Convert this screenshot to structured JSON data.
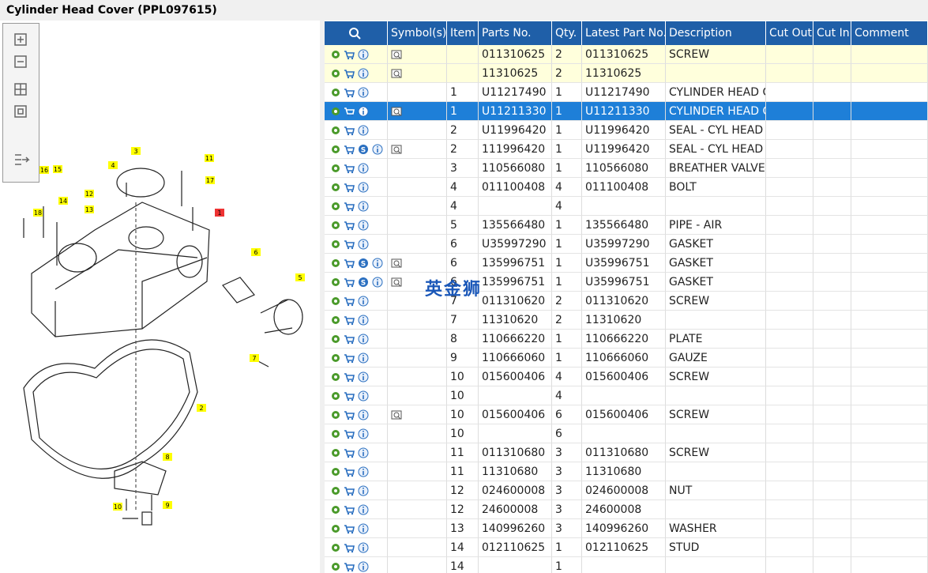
{
  "header": {
    "title": "Cylinder Head Cover (PPL097615)"
  },
  "watermark": "英金狮",
  "diagram": {
    "callouts": [
      "1",
      "2",
      "3",
      "4",
      "5",
      "6",
      "7",
      "8",
      "9",
      "10",
      "11",
      "12",
      "13",
      "14",
      "15",
      "16",
      "17",
      "18"
    ]
  },
  "table": {
    "headers": [
      "Symbol(s)",
      "Item",
      "Parts No.",
      "Qty.",
      "Latest Part No.",
      "Description",
      "Cut Out",
      "Cut In",
      "Comment"
    ],
    "rows": [
      {
        "state": "yellow",
        "sym": true,
        "part": "011310625",
        "qty": 2,
        "latest": "011310625",
        "desc": "SCREW"
      },
      {
        "state": "yellow",
        "sym": true,
        "part": "11310625",
        "qty": 2,
        "latest": "11310625"
      },
      {
        "item": 1,
        "part": "U11217490",
        "qty": 1,
        "latest": "U11217490",
        "desc": "CYLINDER HEAD C"
      },
      {
        "state": "selected",
        "sym": true,
        "item": 1,
        "part": "U11211330",
        "qty": 1,
        "latest": "U11211330",
        "desc": "CYLINDER HEAD C"
      },
      {
        "item": 2,
        "part": "U11996420",
        "qty": 1,
        "latest": "U11996420",
        "desc": "SEAL - CYL HEAD ("
      },
      {
        "s": true,
        "sym": true,
        "item": 2,
        "part": "111996420",
        "qty": 1,
        "latest": "U11996420",
        "desc": "SEAL - CYL HEAD ("
      },
      {
        "item": 3,
        "part": "110566080",
        "qty": 1,
        "latest": "110566080",
        "desc": "BREATHER VALVE"
      },
      {
        "item": 4,
        "part": "011100408",
        "qty": 4,
        "latest": "011100408",
        "desc": "BOLT"
      },
      {
        "item": 4,
        "qty": 4
      },
      {
        "item": 5,
        "part": "135566480",
        "qty": 1,
        "latest": "135566480",
        "desc": "PIPE - AIR"
      },
      {
        "item": 6,
        "part": "U35997290",
        "qty": 1,
        "latest": "U35997290",
        "desc": "GASKET"
      },
      {
        "s": true,
        "sym": true,
        "item": 6,
        "part": "135996751",
        "qty": 1,
        "latest": "U35996751",
        "desc": "GASKET"
      },
      {
        "s": true,
        "sym": true,
        "item": 6,
        "part": "135996751",
        "qty": 1,
        "latest": "U35996751",
        "desc": "GASKET"
      },
      {
        "item": 7,
        "part": "011310620",
        "qty": 2,
        "latest": "011310620",
        "desc": "SCREW"
      },
      {
        "item": 7,
        "part": "11310620",
        "qty": 2,
        "latest": "11310620"
      },
      {
        "item": 8,
        "part": "110666220",
        "qty": 1,
        "latest": "110666220",
        "desc": "PLATE"
      },
      {
        "item": 9,
        "part": "110666060",
        "qty": 1,
        "latest": "110666060",
        "desc": "GAUZE"
      },
      {
        "item": 10,
        "part": "015600406",
        "qty": 4,
        "latest": "015600406",
        "desc": "SCREW"
      },
      {
        "item": 10,
        "qty": 4
      },
      {
        "sym": true,
        "item": 10,
        "part": "015600406",
        "qty": 6,
        "latest": "015600406",
        "desc": "SCREW"
      },
      {
        "item": 10,
        "qty": 6
      },
      {
        "item": 11,
        "part": "011310680",
        "qty": 3,
        "latest": "011310680",
        "desc": "SCREW"
      },
      {
        "item": 11,
        "part": "11310680",
        "qty": 3,
        "latest": "11310680"
      },
      {
        "item": 12,
        "part": "024600008",
        "qty": 3,
        "latest": "024600008",
        "desc": "NUT"
      },
      {
        "item": 12,
        "part": "24600008",
        "qty": 3,
        "latest": "24600008"
      },
      {
        "item": 13,
        "part": "140996260",
        "qty": 3,
        "latest": "140996260",
        "desc": "WASHER"
      },
      {
        "item": 14,
        "part": "012110625",
        "qty": 1,
        "latest": "012110625",
        "desc": "STUD"
      },
      {
        "item": 14,
        "qty": 1
      }
    ]
  }
}
